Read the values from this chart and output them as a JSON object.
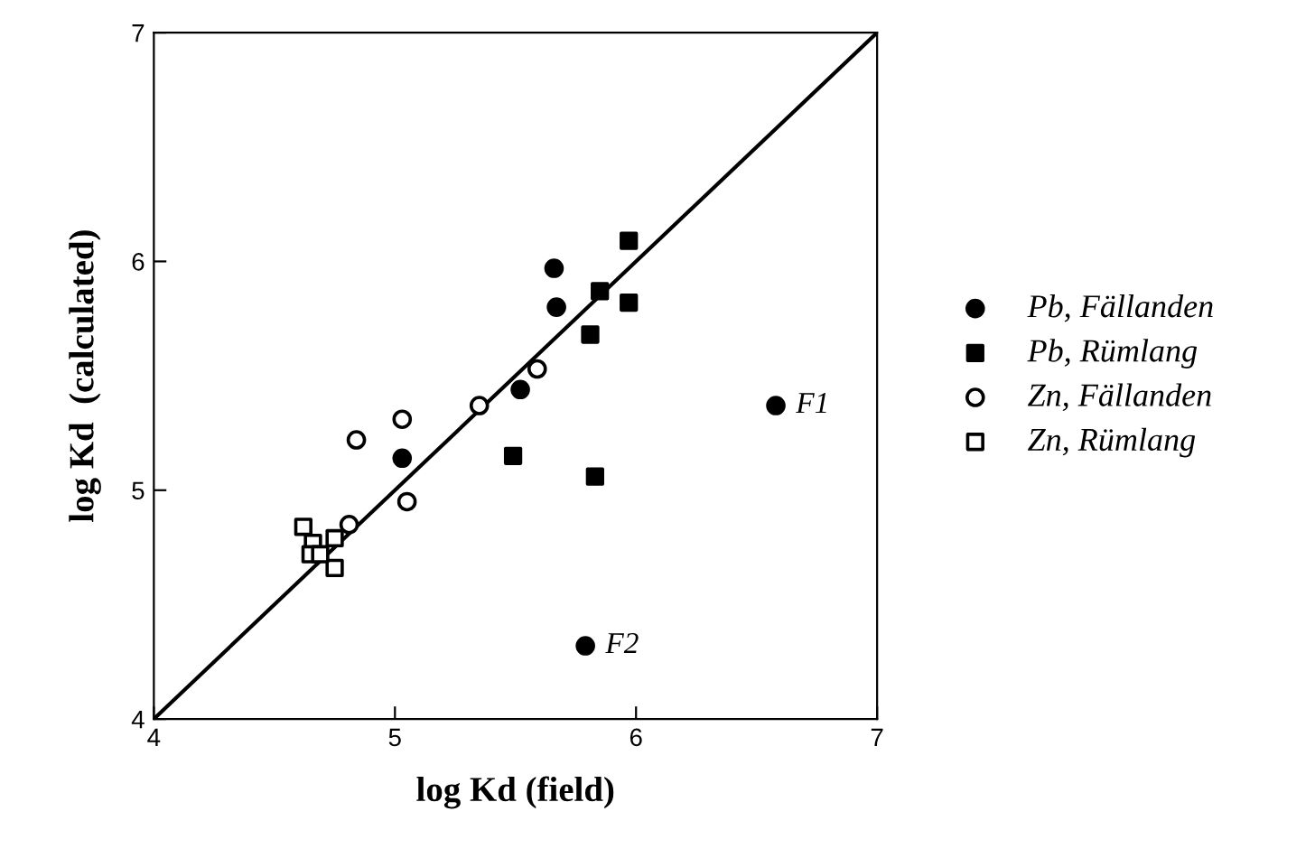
{
  "chart_data": {
    "type": "scatter",
    "xlabel": "log Kd (field)",
    "ylabel": "log Kd  (calculated)",
    "xlim": [
      4,
      7
    ],
    "ylim": [
      4,
      7
    ],
    "xticks": [
      4,
      5,
      6,
      7
    ],
    "yticks": [
      4,
      5,
      6,
      7
    ],
    "grid": false,
    "legend": "right",
    "series": [
      {
        "name": "Pb, Fällanden",
        "color": "#000000",
        "marker": "circle",
        "x": [
          5.66,
          5.67,
          5.52,
          5.03,
          6.58,
          5.79
        ],
        "values": [
          5.97,
          5.8,
          5.44,
          5.14,
          5.37,
          4.32
        ]
      },
      {
        "name": "Pb, Rümlang",
        "color": "#000000",
        "marker": "square",
        "x": [
          5.97,
          5.85,
          5.97,
          5.81,
          5.49,
          5.83
        ],
        "values": [
          6.09,
          5.87,
          5.82,
          5.68,
          5.15,
          5.06
        ]
      },
      {
        "name": "Zn, Fällanden",
        "color": "#ffffff",
        "marker": "circle",
        "x": [
          4.84,
          5.03,
          5.05,
          5.35,
          5.59,
          4.81
        ],
        "values": [
          5.22,
          5.31,
          4.95,
          5.37,
          5.53,
          4.85
        ]
      },
      {
        "name": "Zn, Rümlang",
        "color": "#ffffff",
        "marker": "square",
        "x": [
          4.62,
          4.66,
          4.75,
          4.65,
          4.75,
          4.69
        ],
        "values": [
          4.84,
          4.77,
          4.79,
          4.72,
          4.66,
          4.72
        ]
      },
      {
        "type": "line",
        "color": "#000000",
        "marker": "none",
        "line_style": "solid",
        "x": [
          4,
          7
        ],
        "values": [
          4,
          7
        ]
      }
    ],
    "annotations": [
      {
        "text": "F1",
        "x": 6.58,
        "y": 5.37
      },
      {
        "text": "F2",
        "x": 5.79,
        "y": 4.32
      }
    ]
  }
}
